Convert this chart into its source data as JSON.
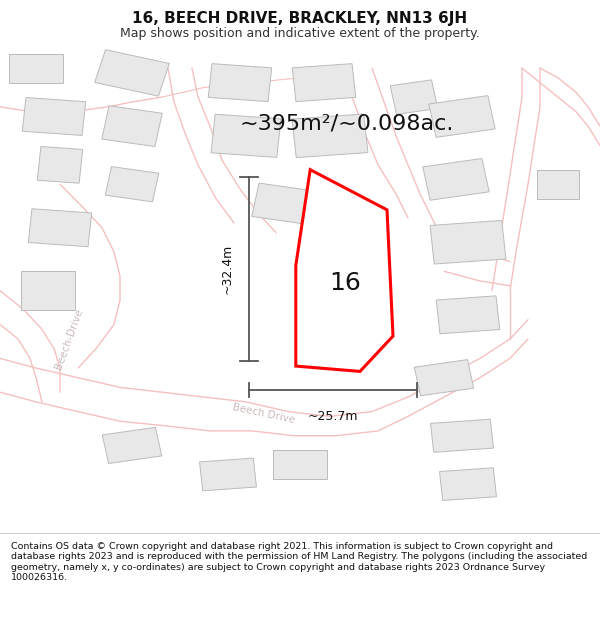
{
  "title": "16, BEECH DRIVE, BRACKLEY, NN13 6JH",
  "subtitle": "Map shows position and indicative extent of the property.",
  "area_label": "~395m²/~0.098ac.",
  "number_label": "16",
  "dim_vertical": "~32.4m",
  "dim_horizontal": "~25.7m",
  "footer": "Contains OS data © Crown copyright and database right 2021. This information is subject to Crown copyright and database rights 2023 and is reproduced with the permission of HM Land Registry. The polygons (including the associated geometry, namely x, y co-ordinates) are subject to Crown copyright and database rights 2023 Ordnance Survey 100026316.",
  "bg_color": "#ffffff",
  "map_bg": "#f7f7f7",
  "road_color": "#f5c0c0",
  "road_fill": "#eeeeee",
  "building_color": "#e8e8e8",
  "building_edge": "#bbbbbb",
  "highlight_color": "#ff0000",
  "dim_color": "#555555",
  "road_label_color": "#ccbbbb",
  "title_fontsize": 11,
  "subtitle_fontsize": 9,
  "area_fontsize": 16,
  "number_fontsize": 18,
  "dim_fontsize": 9,
  "footer_fontsize": 6.8
}
